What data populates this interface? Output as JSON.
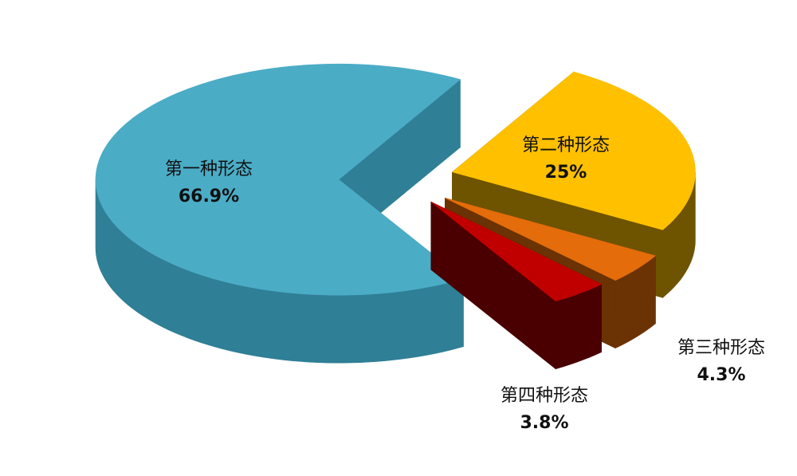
{
  "chart_data": {
    "type": "pie",
    "style": "3d-exploded",
    "slices": [
      {
        "name": "第一种形态",
        "value": 66.9,
        "label": "66.9%",
        "color": "#4BACC6",
        "side_color": "#2F7F96"
      },
      {
        "name": "第二种形态",
        "value": 25,
        "label": "25%",
        "color": "#FFC000",
        "side_color": "#6E5400"
      },
      {
        "name": "第三种形态",
        "value": 4.3,
        "label": "4.3%",
        "color": "#E46C0A",
        "side_color": "#6B3204"
      },
      {
        "name": "第四种形态",
        "value": 3.8,
        "label": "3.8%",
        "color": "#C00000",
        "side_color": "#4A0000"
      }
    ]
  }
}
